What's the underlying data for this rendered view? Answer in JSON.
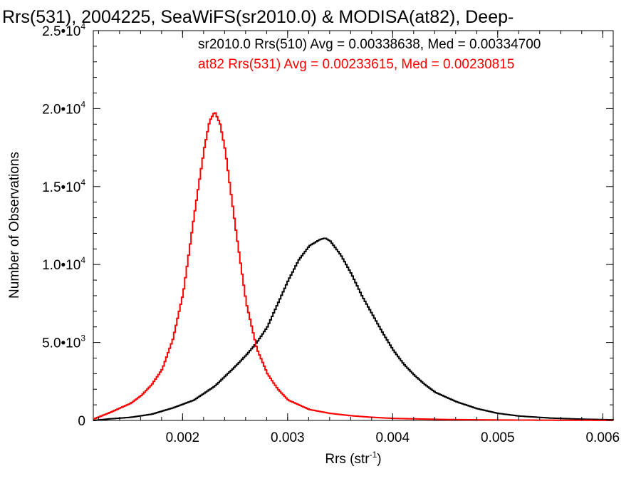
{
  "chart_data": {
    "type": "line",
    "title": "Rrs(531), 2004225, SeaWiFS(sr2010.0) & MODISA(at82), Deep-",
    "xlabel": "Rrs (str",
    "xlabel_sup": "-1",
    "xlabel_close": ")",
    "ylabel": "Number of Observations",
    "xlim": [
      0.00115,
      0.0061
    ],
    "ylim": [
      0,
      25000
    ],
    "grid": false,
    "x_ticks": [
      {
        "value": 0.002,
        "label": "0.002"
      },
      {
        "value": 0.003,
        "label": "0.003"
      },
      {
        "value": 0.004,
        "label": "0.004"
      },
      {
        "value": 0.005,
        "label": "0.005"
      },
      {
        "value": 0.006,
        "label": "0.006"
      }
    ],
    "y_ticks": [
      {
        "value": 0,
        "label": "0",
        "exp": ""
      },
      {
        "value": 5000,
        "label": "5.0•10",
        "exp": "3"
      },
      {
        "value": 10000,
        "label": "1.0•10",
        "exp": "4"
      },
      {
        "value": 15000,
        "label": "1.5•10",
        "exp": "4"
      },
      {
        "value": 20000,
        "label": "2.0•10",
        "exp": "4"
      },
      {
        "value": 25000,
        "label": "2.5•10",
        "exp": "4"
      }
    ],
    "annotations": [
      {
        "text": "sr2010.0 Rrs(510) Avg = 0.00338638, Med = 0.00334700",
        "color": "#000000"
      },
      {
        "text": "at82 Rrs(531) Avg = 0.00233615, Med = 0.00230815",
        "color": "#ff0000"
      }
    ],
    "series": [
      {
        "color": "#000000",
        "x": [
          0.00115,
          0.0013,
          0.0015,
          0.0017,
          0.0019,
          0.0021,
          0.0023,
          0.0025,
          0.0026,
          0.0027,
          0.0028,
          0.0029,
          0.003,
          0.0031,
          0.0032,
          0.0033,
          0.00335,
          0.0034,
          0.0035,
          0.0036,
          0.0037,
          0.0038,
          0.0039,
          0.004,
          0.0041,
          0.0042,
          0.0043,
          0.0044,
          0.0046,
          0.0048,
          0.005,
          0.0052,
          0.0055,
          0.0058,
          0.0061
        ],
        "y": [
          0,
          100,
          200,
          400,
          800,
          1300,
          2200,
          3500,
          4200,
          5000,
          6000,
          7500,
          9000,
          10300,
          11200,
          11600,
          11700,
          11500,
          10600,
          9400,
          8000,
          6800,
          5600,
          4500,
          3600,
          2900,
          2300,
          1800,
          1200,
          750,
          450,
          280,
          150,
          80,
          40
        ]
      },
      {
        "color": "#ff0000",
        "x": [
          0.00115,
          0.0013,
          0.0015,
          0.0016,
          0.0017,
          0.0018,
          0.0019,
          0.002,
          0.0021,
          0.0022,
          0.00225,
          0.0023,
          0.00235,
          0.0024,
          0.0025,
          0.0026,
          0.0027,
          0.0028,
          0.0029,
          0.003,
          0.0032,
          0.0034,
          0.0036,
          0.0038,
          0.004,
          0.0045,
          0.005,
          0.0055,
          0.0061
        ],
        "y": [
          100,
          500,
          1100,
          1600,
          2300,
          3300,
          5200,
          8200,
          13000,
          17500,
          19200,
          19800,
          19000,
          17300,
          12200,
          7500,
          4600,
          3000,
          2000,
          1300,
          700,
          450,
          300,
          200,
          130,
          60,
          30,
          15,
          5
        ]
      }
    ]
  }
}
